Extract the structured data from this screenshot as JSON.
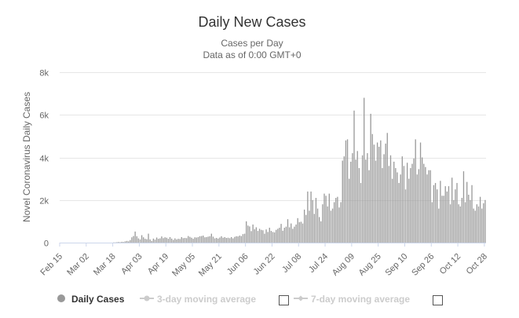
{
  "chart_data": {
    "type": "bar",
    "title": "Daily New Cases",
    "subtitle_line1": "Cases per Day",
    "subtitle_line2": "Data as of 0:00 GMT+0",
    "ylabel": "Novel Coronavirus Daily Cases",
    "xlabel": "",
    "ylim": [
      0,
      8000
    ],
    "yticks": [
      0,
      2000,
      4000,
      6000,
      8000
    ],
    "ytick_labels": [
      "0",
      "2k",
      "4k",
      "6k",
      "8k"
    ],
    "x_start_date": "Feb 15",
    "xtick_labels": [
      "Feb 15",
      "Mar 02",
      "Mar 18",
      "Apr 03",
      "Apr 19",
      "May 05",
      "May 21",
      "Jun 06",
      "Jun 22",
      "Jul 08",
      "Jul 24",
      "Aug 09",
      "Aug 25",
      "Sep 10",
      "Sep 26",
      "Oct 12",
      "Oct 28"
    ],
    "xtick_day_index": [
      0,
      16,
      32,
      48,
      64,
      80,
      96,
      112,
      128,
      144,
      160,
      176,
      192,
      208,
      224,
      240,
      256
    ],
    "series": [
      {
        "name": "Daily Cases",
        "color": "#999999",
        "values": [
          0,
          0,
          0,
          0,
          0,
          0,
          0,
          0,
          0,
          0,
          0,
          0,
          0,
          0,
          0,
          0,
          0,
          0,
          0,
          0,
          0,
          0,
          0,
          0,
          0,
          0,
          0,
          0,
          0,
          0,
          0,
          0,
          10,
          10,
          20,
          30,
          20,
          40,
          30,
          60,
          80,
          60,
          120,
          250,
          310,
          520,
          300,
          200,
          150,
          350,
          250,
          180,
          160,
          420,
          150,
          80,
          190,
          140,
          240,
          180,
          200,
          290,
          210,
          250,
          230,
          180,
          260,
          190,
          130,
          200,
          150,
          180,
          170,
          260,
          210,
          220,
          210,
          310,
          270,
          230,
          180,
          250,
          240,
          260,
          300,
          310,
          330,
          250,
          260,
          280,
          300,
          420,
          280,
          200,
          220,
          190,
          240,
          300,
          230,
          260,
          220,
          230,
          210,
          260,
          200,
          270,
          300,
          290,
          330,
          310,
          400,
          420,
          1000,
          800,
          760,
          540,
          850,
          630,
          720,
          550,
          650,
          600,
          580,
          420,
          620,
          500,
          700,
          550,
          500,
          480,
          600,
          650,
          700,
          880,
          560,
          700,
          750,
          1100,
          720,
          900,
          650,
          750,
          850,
          1150,
          960,
          980,
          900,
          1550,
          1300,
          2400,
          1500,
          2400,
          2000,
          1350,
          2100,
          1600,
          1200,
          1000,
          1800,
          2300,
          2200,
          1700,
          2300,
          1500,
          1600,
          1900,
          2100,
          2150,
          1650,
          1900,
          3850,
          4050,
          4800,
          4850,
          3000,
          3800,
          4200,
          6200,
          3900,
          4300,
          3500,
          2800,
          4100,
          6800,
          3900,
          4200,
          3400,
          6050,
          5100,
          4600,
          3850,
          4700,
          4500,
          4800,
          3500,
          4150,
          4650,
          5150,
          3600,
          4100,
          3000,
          3800,
          3500,
          3300,
          2800,
          3200,
          4050,
          3600,
          2500,
          3750,
          3000,
          3500,
          3700,
          3950,
          4850,
          3200,
          3450,
          4700,
          4000,
          3700,
          3550,
          3200,
          3400,
          3400,
          1900,
          2700,
          2800,
          2500,
          1600,
          2900,
          2200,
          2200,
          2650,
          2400,
          2650,
          1800,
          3050,
          2000,
          2500,
          2800,
          1800,
          1700,
          2100,
          3350,
          1900,
          2850,
          2250,
          2000,
          2700,
          1600,
          1500,
          1800,
          1700,
          2150,
          1600,
          1850,
          2000
        ]
      }
    ],
    "legend": [
      {
        "label": "Daily Cases",
        "active": true
      },
      {
        "label": "3-day moving average",
        "active": false
      },
      {
        "label": "7-day moving average",
        "active": false
      }
    ],
    "legend_position": "bottom",
    "grid": true
  }
}
